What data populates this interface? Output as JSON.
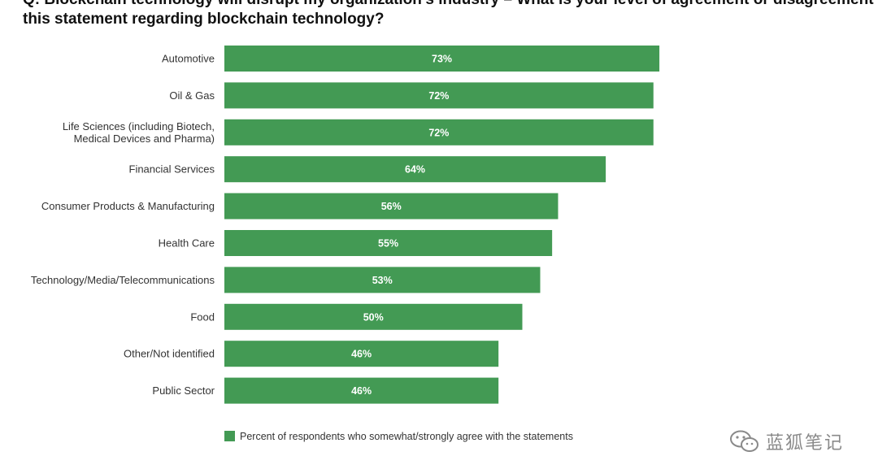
{
  "title_lines": [
    "Q: Blockchain technology will disrupt my organization's industry – What is your level of agreement or disagreement with",
    "this statement regarding blockchain technology?"
  ],
  "watermark": "蓝狐笔记",
  "colors": {
    "bar": "#439a54",
    "bar_label": "#ffffff"
  },
  "chart_data": {
    "type": "bar",
    "orientation": "horizontal",
    "categories": [
      "Automotive",
      "Oil & Gas",
      "Life Sciences (including Biotech, Medical Devices and Pharma)",
      "Financial Services",
      "Consumer Products & Manufacturing",
      "Health Care",
      "Technology/Media/Telecommunications",
      "Food",
      "Other/Not identified",
      "Public Sector"
    ],
    "category_lines": [
      [
        "Automotive"
      ],
      [
        "Oil & Gas"
      ],
      [
        "Life Sciences (including Biotech,",
        "Medical Devices and Pharma)"
      ],
      [
        "Financial Services"
      ],
      [
        "Consumer Products & Manufacturing"
      ],
      [
        "Health Care"
      ],
      [
        "Technology/Media/Telecommunications"
      ],
      [
        "Food"
      ],
      [
        "Other/Not identified"
      ],
      [
        "Public Sector"
      ]
    ],
    "series": [
      {
        "name": "Percent of respondents who somewhat/strongly agree with the statements",
        "values": [
          73,
          72,
          72,
          64,
          56,
          55,
          53,
          50,
          46,
          46
        ],
        "labels": [
          "73%",
          "72%",
          "72%",
          "64%",
          "56%",
          "55%",
          "53%",
          "50%",
          "46%",
          "46%"
        ]
      }
    ],
    "legend_position": "bottom-left",
    "grid": false
  }
}
